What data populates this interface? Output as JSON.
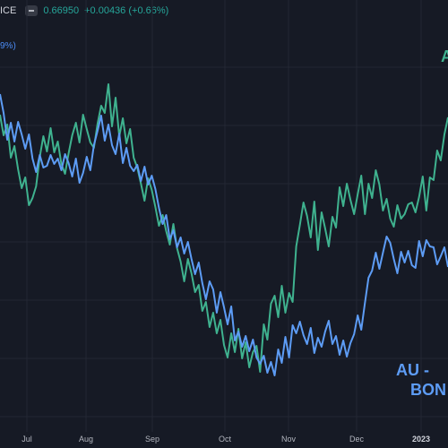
{
  "legend": {
    "symbol_fragment": "ICE",
    "price": "0.66950",
    "change": "+0.00436 (+0.66%)",
    "secondary_fragment": "9%)"
  },
  "labels": {
    "green_series": "A",
    "blue_series_line1": "AU -",
    "blue_series_line2": "BON"
  },
  "colors": {
    "background": "#161a25",
    "green_series": "#3fb28f",
    "blue_series": "#5d9cf5",
    "grid": "#232734"
  },
  "chart_data": {
    "type": "line",
    "x_ticks": [
      "Jul",
      "Aug",
      "Sep",
      "Oct",
      "Nov",
      "Dec",
      "2023"
    ],
    "grid": true,
    "series": [
      {
        "color_key": "green_series",
        "values": [
          128,
          151,
          139,
          176,
          163,
          189,
          210,
          198,
          229,
          221,
          208,
          175,
          152,
          169,
          143,
          170,
          158,
          183,
          194,
          171,
          151,
          137,
          159,
          128,
          144,
          159,
          165,
          138,
          118,
          126,
          94,
          141,
          109,
          152,
          132,
          160,
          144,
          176,
          187,
          205,
          224,
          199,
          212,
          231,
          252,
          240,
          258,
          273,
          250,
          277,
          292,
          314,
          289,
          305,
          326,
          318,
          347,
          337,
          365,
          349,
          372,
          357,
          385,
          399,
          372,
          393,
          367,
          400,
          382,
          410,
          393,
          386,
          415,
          362,
          379,
          339,
          330,
          354,
          319,
          349,
          327,
          337,
          275,
          251,
          226,
          241,
          265,
          225,
          279,
          237,
          255,
          275,
          242,
          254,
          209,
          230,
          205,
          223,
          239,
          217,
          196,
          239,
          205,
          221,
          190,
          206,
          235,
          222,
          244,
          253,
          229,
          244,
          239,
          228,
          226,
          237,
          220,
          197,
          235,
          198,
          201,
          168,
          179,
          150,
          131
        ]
      },
      {
        "color_key": "blue_series",
        "values": [
          105,
          126,
          156,
          137,
          158,
          136,
          150,
          166,
          150,
          177,
          192,
          173,
          187,
          185,
          173,
          183,
          177,
          190,
          172,
          182,
          197,
          177,
          204,
          193,
          175,
          190,
          162,
          146,
          129,
          157,
          139,
          162,
          172,
          149,
          182,
          165,
          185,
          191,
          184,
          202,
          186,
          206,
          196,
          211,
          232,
          250,
          240,
          267,
          257,
          276,
          265,
          283,
          270,
          289,
          306,
          293,
          316,
          334,
          314,
          323,
          349,
          326,
          343,
          362,
          342,
          380,
          370,
          387,
          375,
          392,
          379,
          399,
          406,
          397,
          416,
          404,
          419,
          390,
          405,
          376,
          399,
          363,
          372,
          359,
          374,
          384,
          366,
          394,
          377,
          387,
          370,
          358,
          384,
          375,
          396,
          380,
          398,
          383,
          373,
          352,
          368,
          338,
          310,
          302,
          282,
          300,
          282,
          264,
          271,
          289,
          305,
          281,
          293,
          280,
          296,
          299,
          269,
          286,
          268,
          275,
          276,
          295,
          286,
          276,
          298
        ]
      }
    ]
  }
}
